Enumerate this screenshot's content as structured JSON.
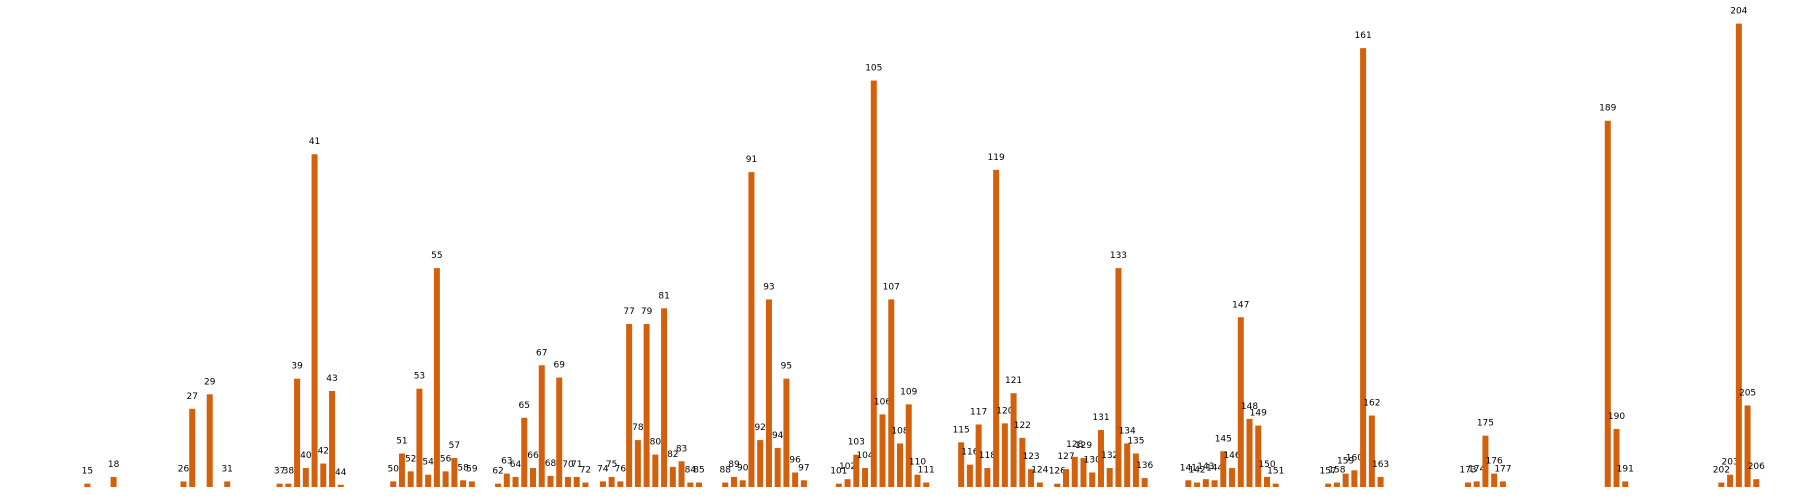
{
  "chart_data": {
    "type": "bar",
    "color": "#d2600c",
    "xlim": [
      5,
      211
    ],
    "ylim": [
      0,
      420
    ],
    "x": [
      15,
      18,
      26,
      27,
      29,
      31,
      37,
      38,
      39,
      40,
      41,
      42,
      43,
      44,
      50,
      51,
      52,
      53,
      54,
      55,
      56,
      57,
      58,
      59,
      62,
      63,
      64,
      65,
      66,
      67,
      68,
      69,
      70,
      71,
      72,
      74,
      75,
      76,
      77,
      78,
      79,
      80,
      81,
      82,
      83,
      84,
      85,
      88,
      89,
      90,
      91,
      92,
      93,
      94,
      95,
      96,
      97,
      101,
      102,
      103,
      104,
      105,
      106,
      107,
      108,
      109,
      110,
      111,
      115,
      116,
      117,
      118,
      119,
      120,
      121,
      122,
      123,
      124,
      126,
      127,
      128,
      129,
      130,
      131,
      132,
      133,
      134,
      135,
      136,
      141,
      142,
      143,
      144,
      145,
      146,
      147,
      148,
      149,
      150,
      151,
      157,
      158,
      159,
      160,
      161,
      162,
      163,
      173,
      174,
      175,
      176,
      177,
      189,
      190,
      191,
      202,
      203,
      204,
      205,
      206
    ],
    "values": [
      3,
      9,
      5,
      70,
      83,
      5,
      3,
      3,
      97,
      17,
      298,
      21,
      86,
      2,
      5,
      30,
      14,
      88,
      11,
      196,
      14,
      26,
      6,
      5,
      3,
      12,
      9,
      62,
      17,
      109,
      10,
      98,
      9,
      9,
      4,
      5,
      9,
      5,
      146,
      42,
      146,
      29,
      160,
      18,
      23,
      4,
      4,
      4,
      9,
      6,
      282,
      42,
      168,
      35,
      97,
      13,
      6,
      3,
      7,
      29,
      17,
      364,
      65,
      168,
      39,
      74,
      11,
      4,
      40,
      20,
      56,
      17,
      284,
      57,
      84,
      44,
      16,
      4,
      3,
      16,
      27,
      26,
      13,
      51,
      17,
      196,
      39,
      30,
      8,
      6,
      4,
      7,
      6,
      32,
      17,
      152,
      61,
      55,
      9,
      3,
      3,
      4,
      12,
      15,
      393,
      64,
      9,
      4,
      5,
      46,
      12,
      5,
      328,
      52,
      5,
      4,
      11,
      415,
      73,
      7
    ]
  }
}
